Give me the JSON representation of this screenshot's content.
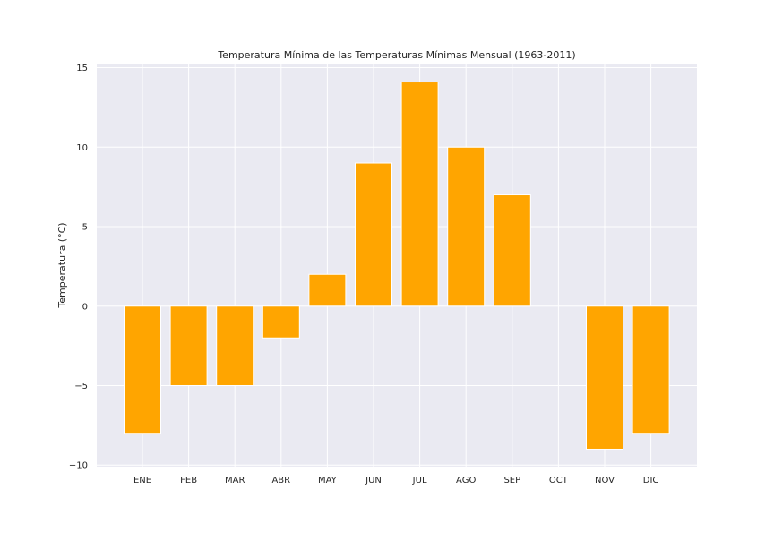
{
  "chart_data": {
    "type": "bar",
    "title": "Temperatura Mínima de las Temperaturas Mínimas Mensual (1963-2011)",
    "xlabel": "",
    "ylabel": "Temperatura (°C)",
    "categories": [
      "ENE",
      "FEB",
      "MAR",
      "ABR",
      "MAY",
      "JUN",
      "JUL",
      "AGO",
      "SEP",
      "OCT",
      "NOV",
      "DIC"
    ],
    "values": [
      -8,
      -5,
      -5,
      -2,
      2,
      9,
      14.1,
      10,
      7,
      0,
      -9,
      -8
    ],
    "yticks": [
      -10,
      -5,
      0,
      5,
      10,
      15
    ],
    "ylim": [
      -10.1,
      15.2
    ],
    "grid": true,
    "bar_color": "#FFA500",
    "background_color": "#EAEAF2",
    "grid_color": "#FFFFFF"
  }
}
